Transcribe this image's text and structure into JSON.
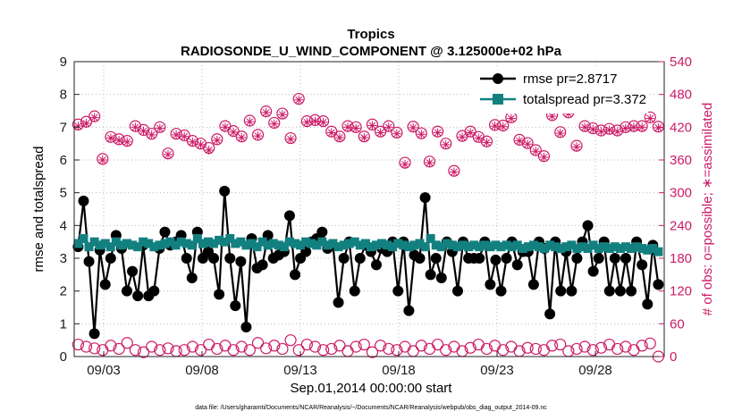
{
  "chart_data": {
    "type": "line",
    "title": "Tropics",
    "subtitle": "RADIOSONDE_U_WIND_COMPONENT @ 3.125000e+02 hPa",
    "xlabel": "Sep.01,2014 00:00:00 start",
    "ylabel_left": "rmse and totalspread",
    "ylabel_right": "# of obs: o=possible; ∗=assimilated",
    "ylim_left": [
      0,
      9
    ],
    "ylim_right": [
      0,
      540
    ],
    "yticks_left": [
      "0",
      "1",
      "2",
      "3",
      "4",
      "5",
      "6",
      "7",
      "8",
      "9"
    ],
    "yticks_right": [
      "0",
      "60",
      "120",
      "180",
      "240",
      "300",
      "360",
      "420",
      "480",
      "540"
    ],
    "xlim_days": [
      1.5,
      31.5
    ],
    "xticks": [
      {
        "day": 3,
        "label": "09/03"
      },
      {
        "day": 8,
        "label": "09/08"
      },
      {
        "day": 13,
        "label": "09/13"
      },
      {
        "day": 18,
        "label": "09/18"
      },
      {
        "day": 23,
        "label": "09/23"
      },
      {
        "day": 28,
        "label": "09/28"
      }
    ],
    "footer": "data file: /Users/gharamti/Documents/NCAR/Reanalysis/~/Documents/NCAR/Reanalysis/webpub/obs_diag_output_2014-09.nc",
    "series": [
      {
        "name": "rmse",
        "legend": "rmse  pr=2.8717",
        "axis": "left",
        "color": "#000000",
        "values": [
          3.35,
          4.75,
          2.9,
          0.7,
          3.25,
          2.2,
          3.0,
          3.7,
          3.3,
          2.0,
          2.6,
          1.85,
          3.4,
          1.85,
          2.0,
          3.3,
          3.8,
          3.4,
          3.5,
          3.7,
          3.0,
          2.4,
          3.8,
          3.0,
          3.2,
          3.0,
          1.9,
          5.05,
          3.0,
          1.55,
          2.9,
          0.9,
          3.6,
          2.7,
          2.8,
          3.7,
          3.0,
          3.1,
          3.2,
          4.3,
          2.5,
          3.0,
          3.2,
          3.5,
          3.6,
          3.8,
          3.3,
          3.4,
          1.65,
          3.0,
          3.5,
          2.0,
          3.0,
          3.4,
          3.2,
          2.8,
          3.3,
          3.2,
          3.5,
          2.0,
          3.5,
          1.4,
          3.1,
          3.0,
          4.85,
          2.5,
          3.0,
          2.4,
          3.5,
          3.2,
          2.0,
          3.5,
          3.0,
          3.0,
          3.0,
          3.5,
          2.2,
          2.95,
          2.0,
          3.0,
          3.5,
          2.8,
          3.2,
          3.2,
          2.2,
          3.5,
          3.3,
          1.3,
          3.5,
          2.0,
          3.2,
          2.0,
          3.0,
          3.5,
          4.0,
          2.6,
          3.0,
          3.5,
          2.0,
          3.0,
          2.0,
          3.0,
          2.0,
          3.5,
          2.8,
          1.6,
          3.4,
          2.2
        ]
      },
      {
        "name": "totalspread",
        "legend": "totalspread  pr=3.372",
        "axis": "left",
        "color": "#138080",
        "values": [
          3.45,
          3.6,
          3.35,
          3.5,
          3.4,
          3.45,
          3.35,
          3.5,
          3.4,
          3.45,
          3.4,
          3.35,
          3.5,
          3.45,
          3.35,
          3.4,
          3.45,
          3.5,
          3.4,
          3.5,
          3.45,
          3.4,
          3.6,
          3.45,
          3.5,
          3.45,
          3.55,
          3.5,
          3.6,
          3.45,
          3.5,
          3.4,
          3.45,
          3.35,
          3.5,
          3.4,
          3.45,
          3.4,
          3.35,
          3.5,
          3.45,
          3.4,
          3.5,
          3.45,
          3.4,
          3.5,
          3.4,
          3.45,
          3.35,
          3.4,
          3.45,
          3.5,
          3.4,
          3.45,
          3.35,
          3.4,
          3.45,
          3.4,
          3.35,
          3.45,
          3.4,
          3.35,
          3.4,
          3.45,
          3.35,
          3.6,
          3.4,
          3.35,
          3.45,
          3.4,
          3.35,
          3.4,
          3.35,
          3.4,
          3.35,
          3.4,
          3.35,
          3.4,
          3.35,
          3.4,
          3.35,
          3.4,
          3.3,
          3.35,
          3.4,
          3.35,
          3.3,
          3.4,
          3.35,
          3.3,
          3.35,
          3.4,
          3.3,
          3.35,
          3.3,
          3.4,
          3.3,
          3.35,
          3.3,
          3.35,
          3.3,
          3.35,
          3.3,
          3.35,
          3.3,
          3.25,
          3.3,
          3.2
        ]
      },
      {
        "name": "obs_possible",
        "axis": "right",
        "color": "#cc1a66",
        "values": [
          425,
          430,
          440,
          362,
          402,
          398,
          395,
          422,
          415,
          408,
          420,
          372,
          408,
          405,
          395,
          390,
          382,
          398,
          422,
          413,
          403,
          432,
          406,
          449,
          428,
          445,
          400,
          472,
          431,
          433,
          431,
          412,
          403,
          422,
          420,
          403,
          425,
          412,
          422,
          410,
          355,
          421,
          409,
          357,
          412,
          390,
          340,
          404,
          412,
          402,
          394,
          424,
          423,
          438,
          397,
          391,
          378,
          367,
          442,
          411,
          447,
          386,
          422,
          418,
          414,
          417,
          414,
          420,
          422,
          422,
          438,
          421
        ]
      },
      {
        "name": "obs_assimilated",
        "axis": "right",
        "color": "#cc1a66",
        "values": [
          422,
          427,
          438,
          360,
          400,
          396,
          393,
          420,
          413,
          406,
          418,
          370,
          406,
          403,
          393,
          388,
          378,
          396,
          420,
          411,
          401,
          430,
          404,
          447,
          426,
          443,
          398,
          470,
          429,
          431,
          429,
          410,
          401,
          420,
          418,
          401,
          423,
          410,
          420,
          408,
          352,
          419,
          407,
          355,
          410,
          388,
          338,
          402,
          410,
          400,
          392,
          422,
          421,
          436,
          395,
          389,
          376,
          365,
          440,
          409,
          445,
          384,
          420,
          416,
          412,
          415,
          412,
          418,
          420,
          420,
          436,
          419
        ]
      },
      {
        "name": "obs_possible_low",
        "axis": "right",
        "color": "#cc1a66",
        "values": [
          22,
          18,
          15,
          12,
          20,
          14,
          25,
          12,
          8,
          18,
          12,
          15,
          10,
          12,
          18,
          12,
          22,
          14,
          20,
          12,
          18,
          12,
          25,
          15,
          20,
          14,
          30,
          12,
          22,
          18,
          12,
          14,
          20,
          10,
          18,
          22,
          8,
          20,
          14,
          12,
          18,
          10,
          20,
          14,
          22,
          12,
          18,
          10,
          16,
          22,
          14,
          20,
          12,
          18,
          10,
          16,
          14,
          12,
          20,
          22,
          10,
          14,
          18,
          12,
          16,
          22,
          14,
          18,
          12,
          20,
          24,
          0
        ]
      }
    ]
  }
}
